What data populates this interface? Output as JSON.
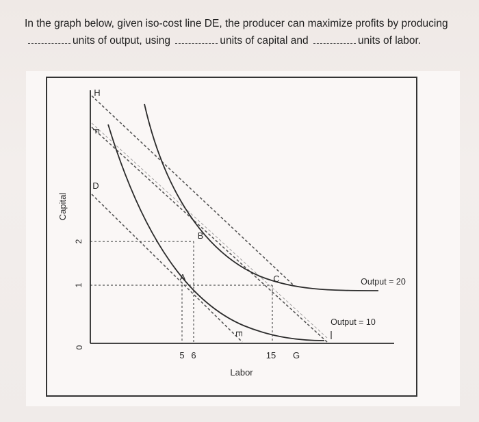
{
  "question": {
    "line1": "In the graph below, given iso-cost line DE, the producer can maximize profits by producing",
    "part1": "units of output, using",
    "part2": "units of capital and",
    "part3": "units of labor."
  },
  "chart_data": {
    "type": "line",
    "xlabel": "Labor",
    "ylabel": "Capital",
    "x_ticks": [
      "5",
      "6",
      "15"
    ],
    "y_ticks": [
      "0",
      "1",
      "2"
    ],
    "point_labels": [
      "H",
      "F",
      "D",
      "E",
      "G",
      "A",
      "B",
      "C"
    ],
    "isoquants": [
      {
        "name": "Output = 10",
        "passes_through": "A",
        "point": [
          5,
          1
        ]
      },
      {
        "name": "Output = 20",
        "passes_through": "B",
        "point": [
          6,
          2
        ]
      }
    ],
    "isocost_lines": [
      {
        "name": "DE",
        "from": "D",
        "to": "E"
      },
      {
        "name": "FG",
        "from": "F",
        "to": "G",
        "passes_through": "C",
        "point": [
          15,
          1
        ]
      },
      {
        "name": "H",
        "from": "H"
      }
    ],
    "guide_lines": [
      {
        "type": "horizontal",
        "y": 2,
        "to_x": 6
      },
      {
        "type": "horizontal",
        "y": 1,
        "to_x": 15
      },
      {
        "type": "vertical",
        "x": 5,
        "to_y": 1
      },
      {
        "type": "vertical",
        "x": 6,
        "to_y": 2
      },
      {
        "type": "vertical",
        "x": 15,
        "to_y": 1
      }
    ],
    "colors": {
      "curves": "#2b2b2b",
      "dashed": "#555555"
    }
  }
}
